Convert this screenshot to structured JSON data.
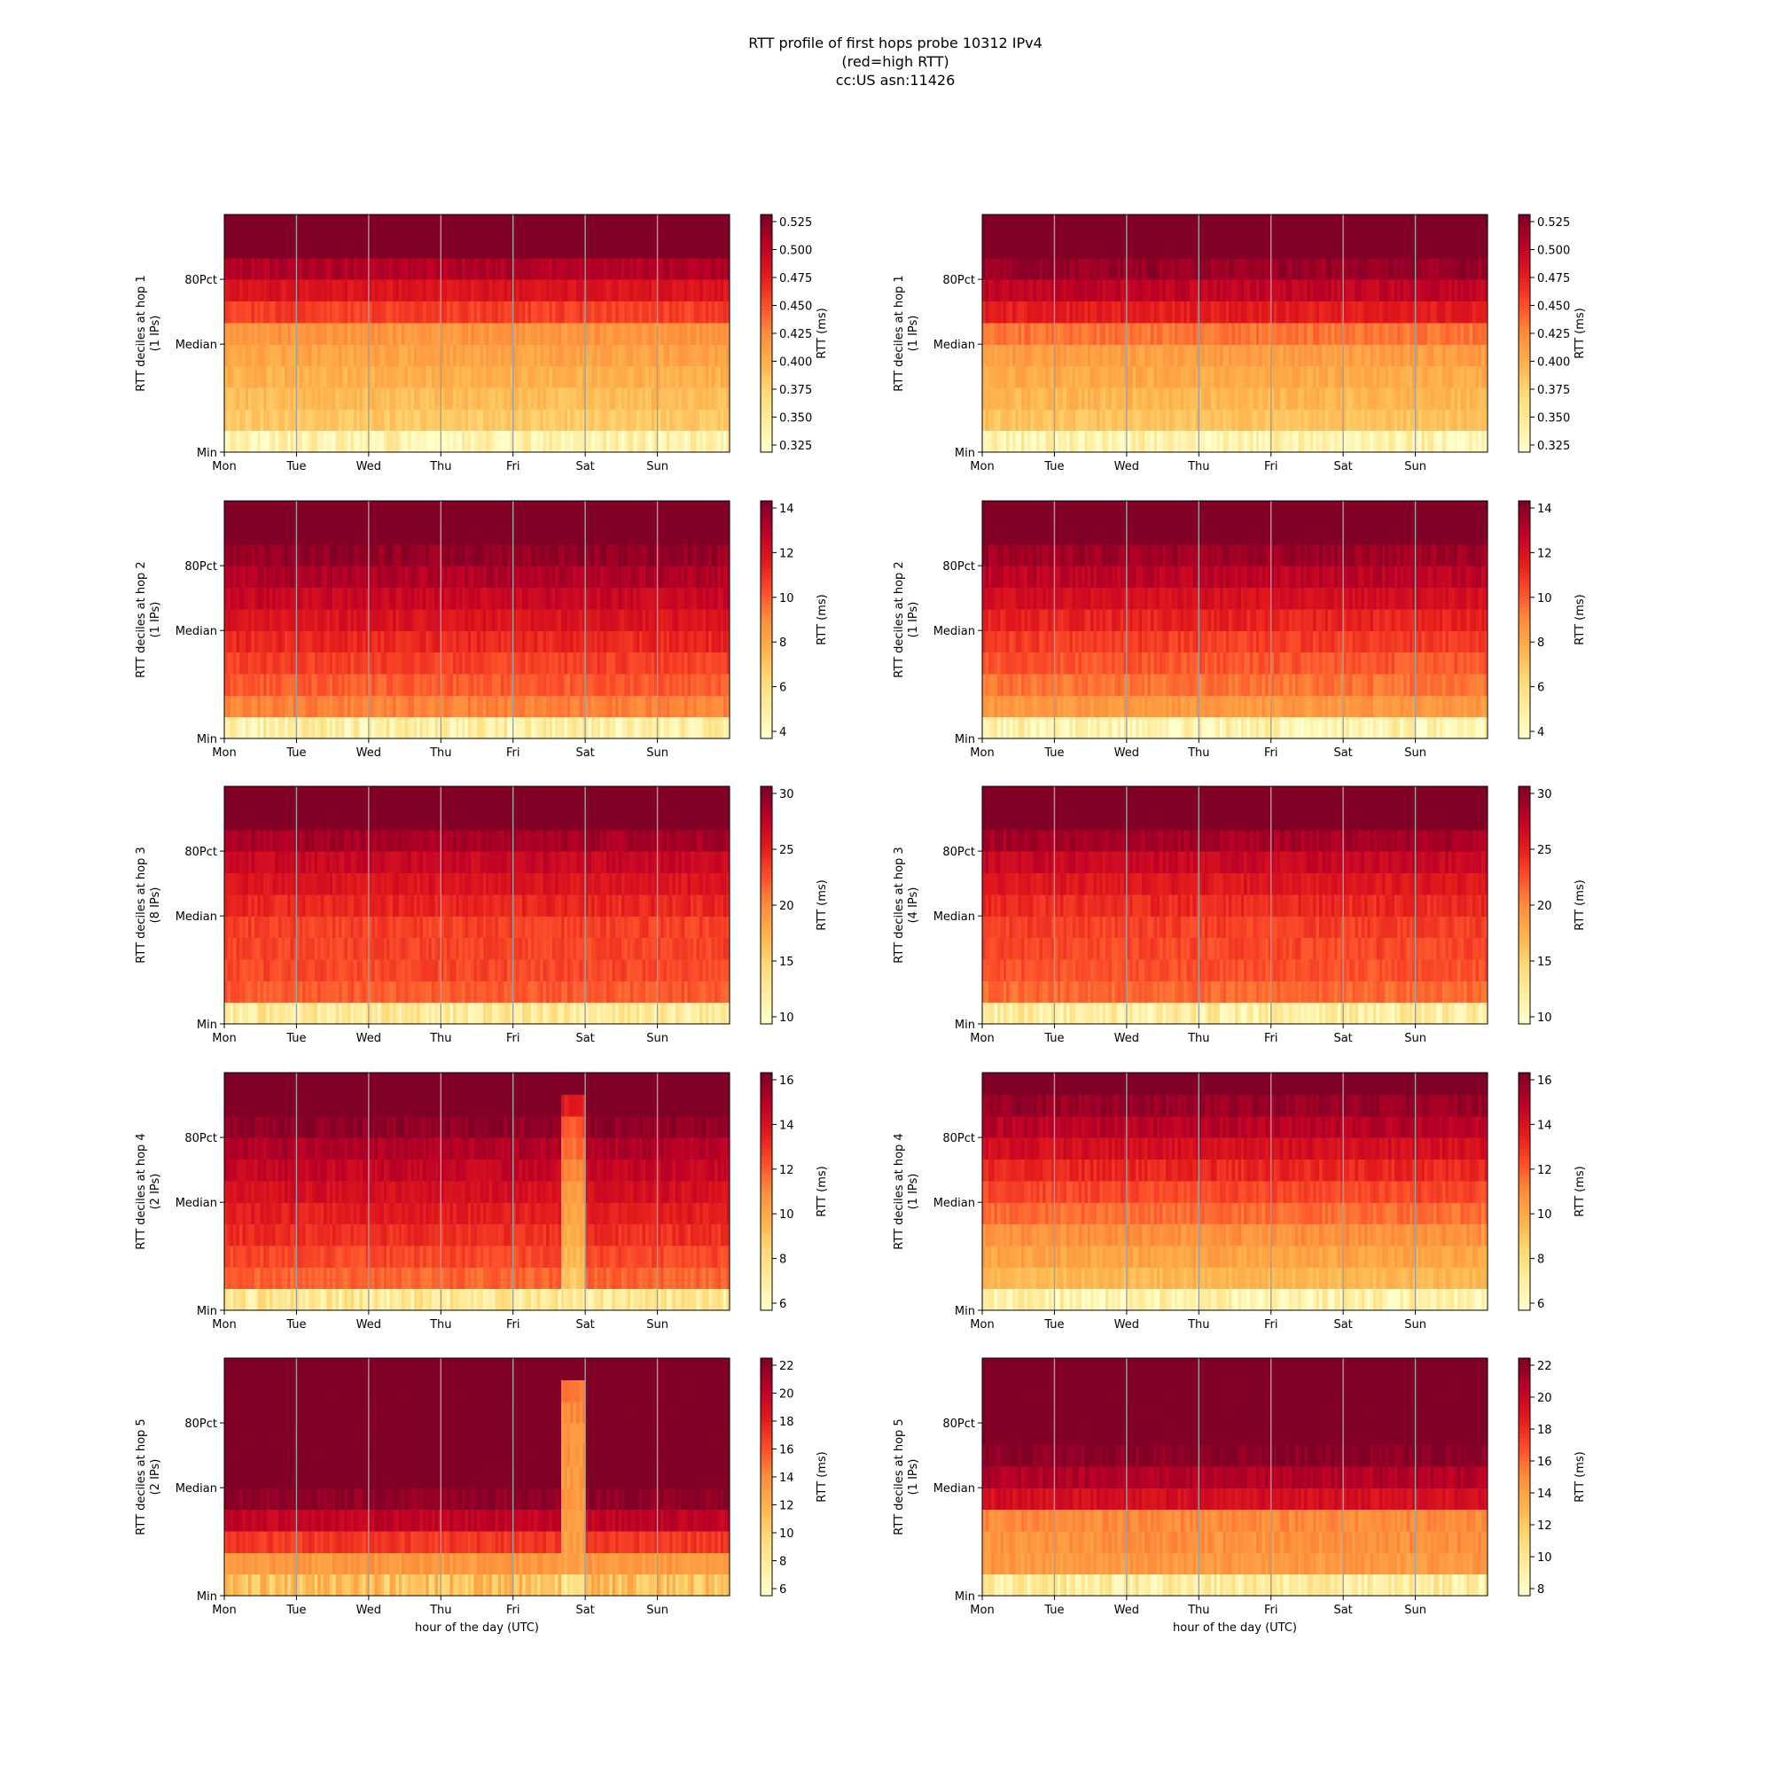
{
  "figure_title": {
    "line1": "RTT profile of first hops probe 10312 IPv4",
    "line2": "(red=high RTT)",
    "line3": "cc:US asn:11426"
  },
  "colormap": {
    "name": "YlOrRd",
    "stops": [
      "#ffffcc",
      "#ffeda0",
      "#fed976",
      "#feb24c",
      "#fd8d3c",
      "#fc4e2a",
      "#e31a1c",
      "#bd0026",
      "#800026"
    ]
  },
  "shared": {
    "x_ticks": [
      "Mon",
      "Tue",
      "Wed",
      "Thu",
      "Fri",
      "Sat",
      "Sun"
    ],
    "y_ticks": [
      "Min",
      "Median",
      "80Pct"
    ],
    "xlabel": "hour of the day (UTC)",
    "colorbar_label": "RTT (ms)"
  },
  "chart_data": [
    {
      "type": "heatmap",
      "ylabel": "RTT deciles at hop 1",
      "sublabel": "(1 IPs)",
      "colorbar_ticks": [
        "0.325",
        "0.350",
        "0.375",
        "0.400",
        "0.425",
        "0.450",
        "0.475",
        "0.500",
        "0.525"
      ],
      "decile_levels": [
        0.08,
        0.3,
        0.34,
        0.38,
        0.42,
        0.47,
        0.66,
        0.78,
        0.9,
        1.0,
        1.0
      ],
      "anomaly": null
    },
    {
      "type": "heatmap",
      "ylabel": "RTT deciles at hop 1",
      "sublabel": "(1 IPs)",
      "colorbar_ticks": [
        "0.325",
        "0.350",
        "0.375",
        "0.400",
        "0.425",
        "0.450",
        "0.475",
        "0.500",
        "0.525"
      ],
      "decile_levels": [
        0.08,
        0.32,
        0.36,
        0.4,
        0.44,
        0.55,
        0.75,
        0.86,
        0.95,
        1.0,
        1.0
      ],
      "anomaly": null
    },
    {
      "type": "heatmap",
      "ylabel": "RTT deciles at hop 2",
      "sublabel": "(1 IPs)",
      "colorbar_ticks": [
        "4",
        "6",
        "8",
        "10",
        "12",
        "14"
      ],
      "decile_levels": [
        0.1,
        0.52,
        0.6,
        0.66,
        0.72,
        0.78,
        0.84,
        0.9,
        0.96,
        1.0,
        1.0
      ],
      "anomaly": null
    },
    {
      "type": "heatmap",
      "ylabel": "RTT deciles at hop 2",
      "sublabel": "(1 IPs)",
      "colorbar_ticks": [
        "4",
        "6",
        "8",
        "10",
        "12",
        "14"
      ],
      "decile_levels": [
        0.08,
        0.46,
        0.55,
        0.61,
        0.67,
        0.73,
        0.8,
        0.87,
        0.94,
        1.0,
        1.0
      ],
      "anomaly": null
    },
    {
      "type": "heatmap",
      "ylabel": "RTT deciles at hop 3",
      "sublabel": "(8 IPs)",
      "colorbar_ticks": [
        "10",
        "15",
        "20",
        "25",
        "30"
      ],
      "decile_levels": [
        0.14,
        0.6,
        0.64,
        0.65,
        0.66,
        0.72,
        0.78,
        0.84,
        0.92,
        1.0,
        1.0
      ],
      "anomaly": null
    },
    {
      "type": "heatmap",
      "ylabel": "RTT deciles at hop 3",
      "sublabel": "(4 IPs)",
      "colorbar_ticks": [
        "10",
        "15",
        "20",
        "25",
        "30"
      ],
      "decile_levels": [
        0.12,
        0.57,
        0.62,
        0.64,
        0.66,
        0.71,
        0.77,
        0.84,
        0.92,
        1.0,
        1.0
      ],
      "anomaly": null
    },
    {
      "type": "heatmap",
      "ylabel": "RTT deciles at hop 4",
      "sublabel": "(2 IPs)",
      "colorbar_ticks": [
        "6",
        "8",
        "10",
        "12",
        "14",
        "16"
      ],
      "decile_levels": [
        0.15,
        0.58,
        0.64,
        0.7,
        0.75,
        0.8,
        0.85,
        0.9,
        0.97,
        1.0,
        1.0
      ],
      "anomaly": {
        "start_day": 4.65,
        "end_day": 4.97,
        "decile_levels": [
          0.1,
          0.3,
          0.36,
          0.4,
          0.42,
          0.45,
          0.5,
          0.56,
          0.62,
          0.75,
          1.0
        ]
      }
    },
    {
      "type": "heatmap",
      "ylabel": "RTT deciles at hop 4",
      "sublabel": "(1 IPs)",
      "colorbar_ticks": [
        "6",
        "8",
        "10",
        "12",
        "14",
        "16"
      ],
      "decile_levels": [
        0.08,
        0.36,
        0.42,
        0.48,
        0.56,
        0.64,
        0.72,
        0.8,
        0.88,
        0.95,
        1.0
      ],
      "anomaly": null
    },
    {
      "type": "heatmap",
      "ylabel": "RTT deciles at hop 5",
      "sublabel": "(2 IPs)",
      "colorbar_ticks": [
        "6",
        "8",
        "10",
        "12",
        "14",
        "16",
        "18",
        "20",
        "22"
      ],
      "decile_levels": [
        0.33,
        0.46,
        0.68,
        0.86,
        0.97,
        1.0,
        1.0,
        1.0,
        1.0,
        1.0,
        1.0
      ],
      "anomaly": {
        "start_day": 4.65,
        "end_day": 4.97,
        "decile_levels": [
          0.15,
          0.42,
          0.43,
          0.44,
          0.45,
          0.46,
          0.47,
          0.48,
          0.5,
          0.52,
          1.0
        ]
      }
    },
    {
      "type": "heatmap",
      "ylabel": "RTT deciles at hop 5",
      "sublabel": "(1 IPs)",
      "colorbar_ticks": [
        "8",
        "10",
        "12",
        "14",
        "16",
        "18",
        "20",
        "22"
      ],
      "decile_levels": [
        0.12,
        0.46,
        0.48,
        0.5,
        0.8,
        0.9,
        0.98,
        1.0,
        1.0,
        1.0,
        1.0
      ],
      "anomaly": null
    }
  ]
}
